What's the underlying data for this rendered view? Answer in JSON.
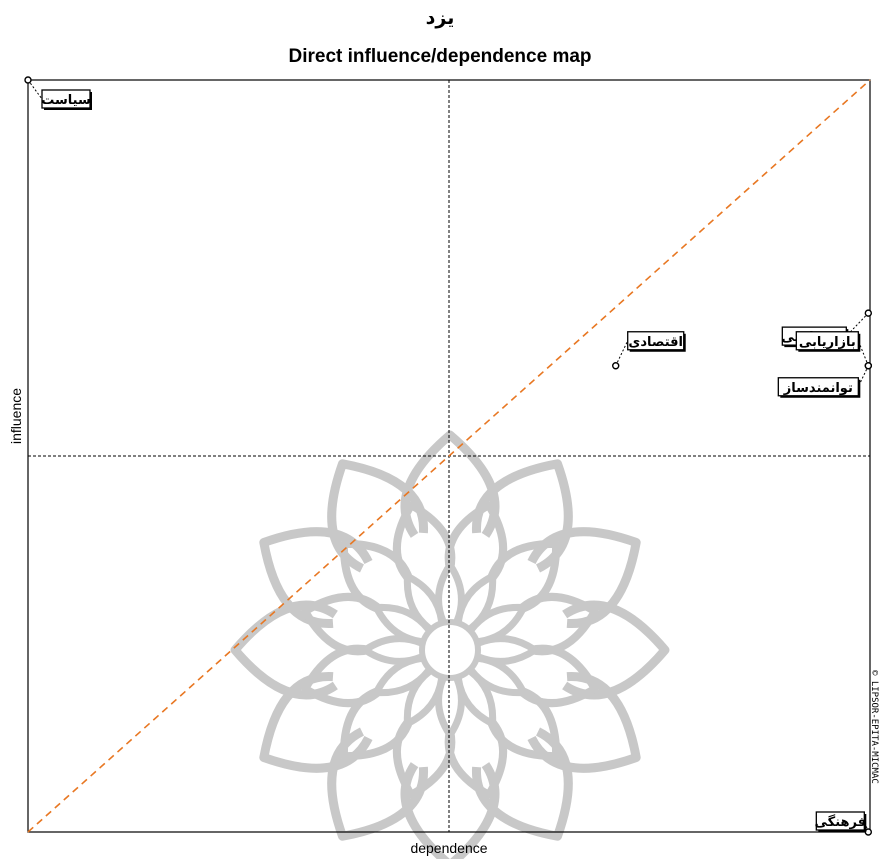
{
  "chart_data": {
    "type": "scatter",
    "title_top": "یزد",
    "title": "Direct influence/dependence map",
    "xlabel": "dependence",
    "ylabel": "influence",
    "xlim": [
      0,
      1
    ],
    "ylim": [
      0,
      1
    ],
    "grid": false,
    "quadrant_lines": {
      "x": 0.5,
      "y": 0.5
    },
    "diagonal": true,
    "watermark": "© LIPSOR-EPITA-MICMAC",
    "colors": {
      "diagonal": "#E87722",
      "axes": "#000000",
      "points": "#000000",
      "flower": "#C8C8C8"
    },
    "points": [
      {
        "name": "سیاست",
        "x": 0.0,
        "y": 1.0
      },
      {
        "name": "زیرساختی",
        "x": 0.998,
        "y": 0.69
      },
      {
        "name": "بازاریابی",
        "x": 0.998,
        "y": 0.62
      },
      {
        "name": "توانمندساز",
        "x": 0.998,
        "y": 0.62
      },
      {
        "name": "اقتصادی",
        "x": 0.698,
        "y": 0.62
      },
      {
        "name": "فرهنگی",
        "x": 0.998,
        "y": 0.0
      }
    ]
  }
}
